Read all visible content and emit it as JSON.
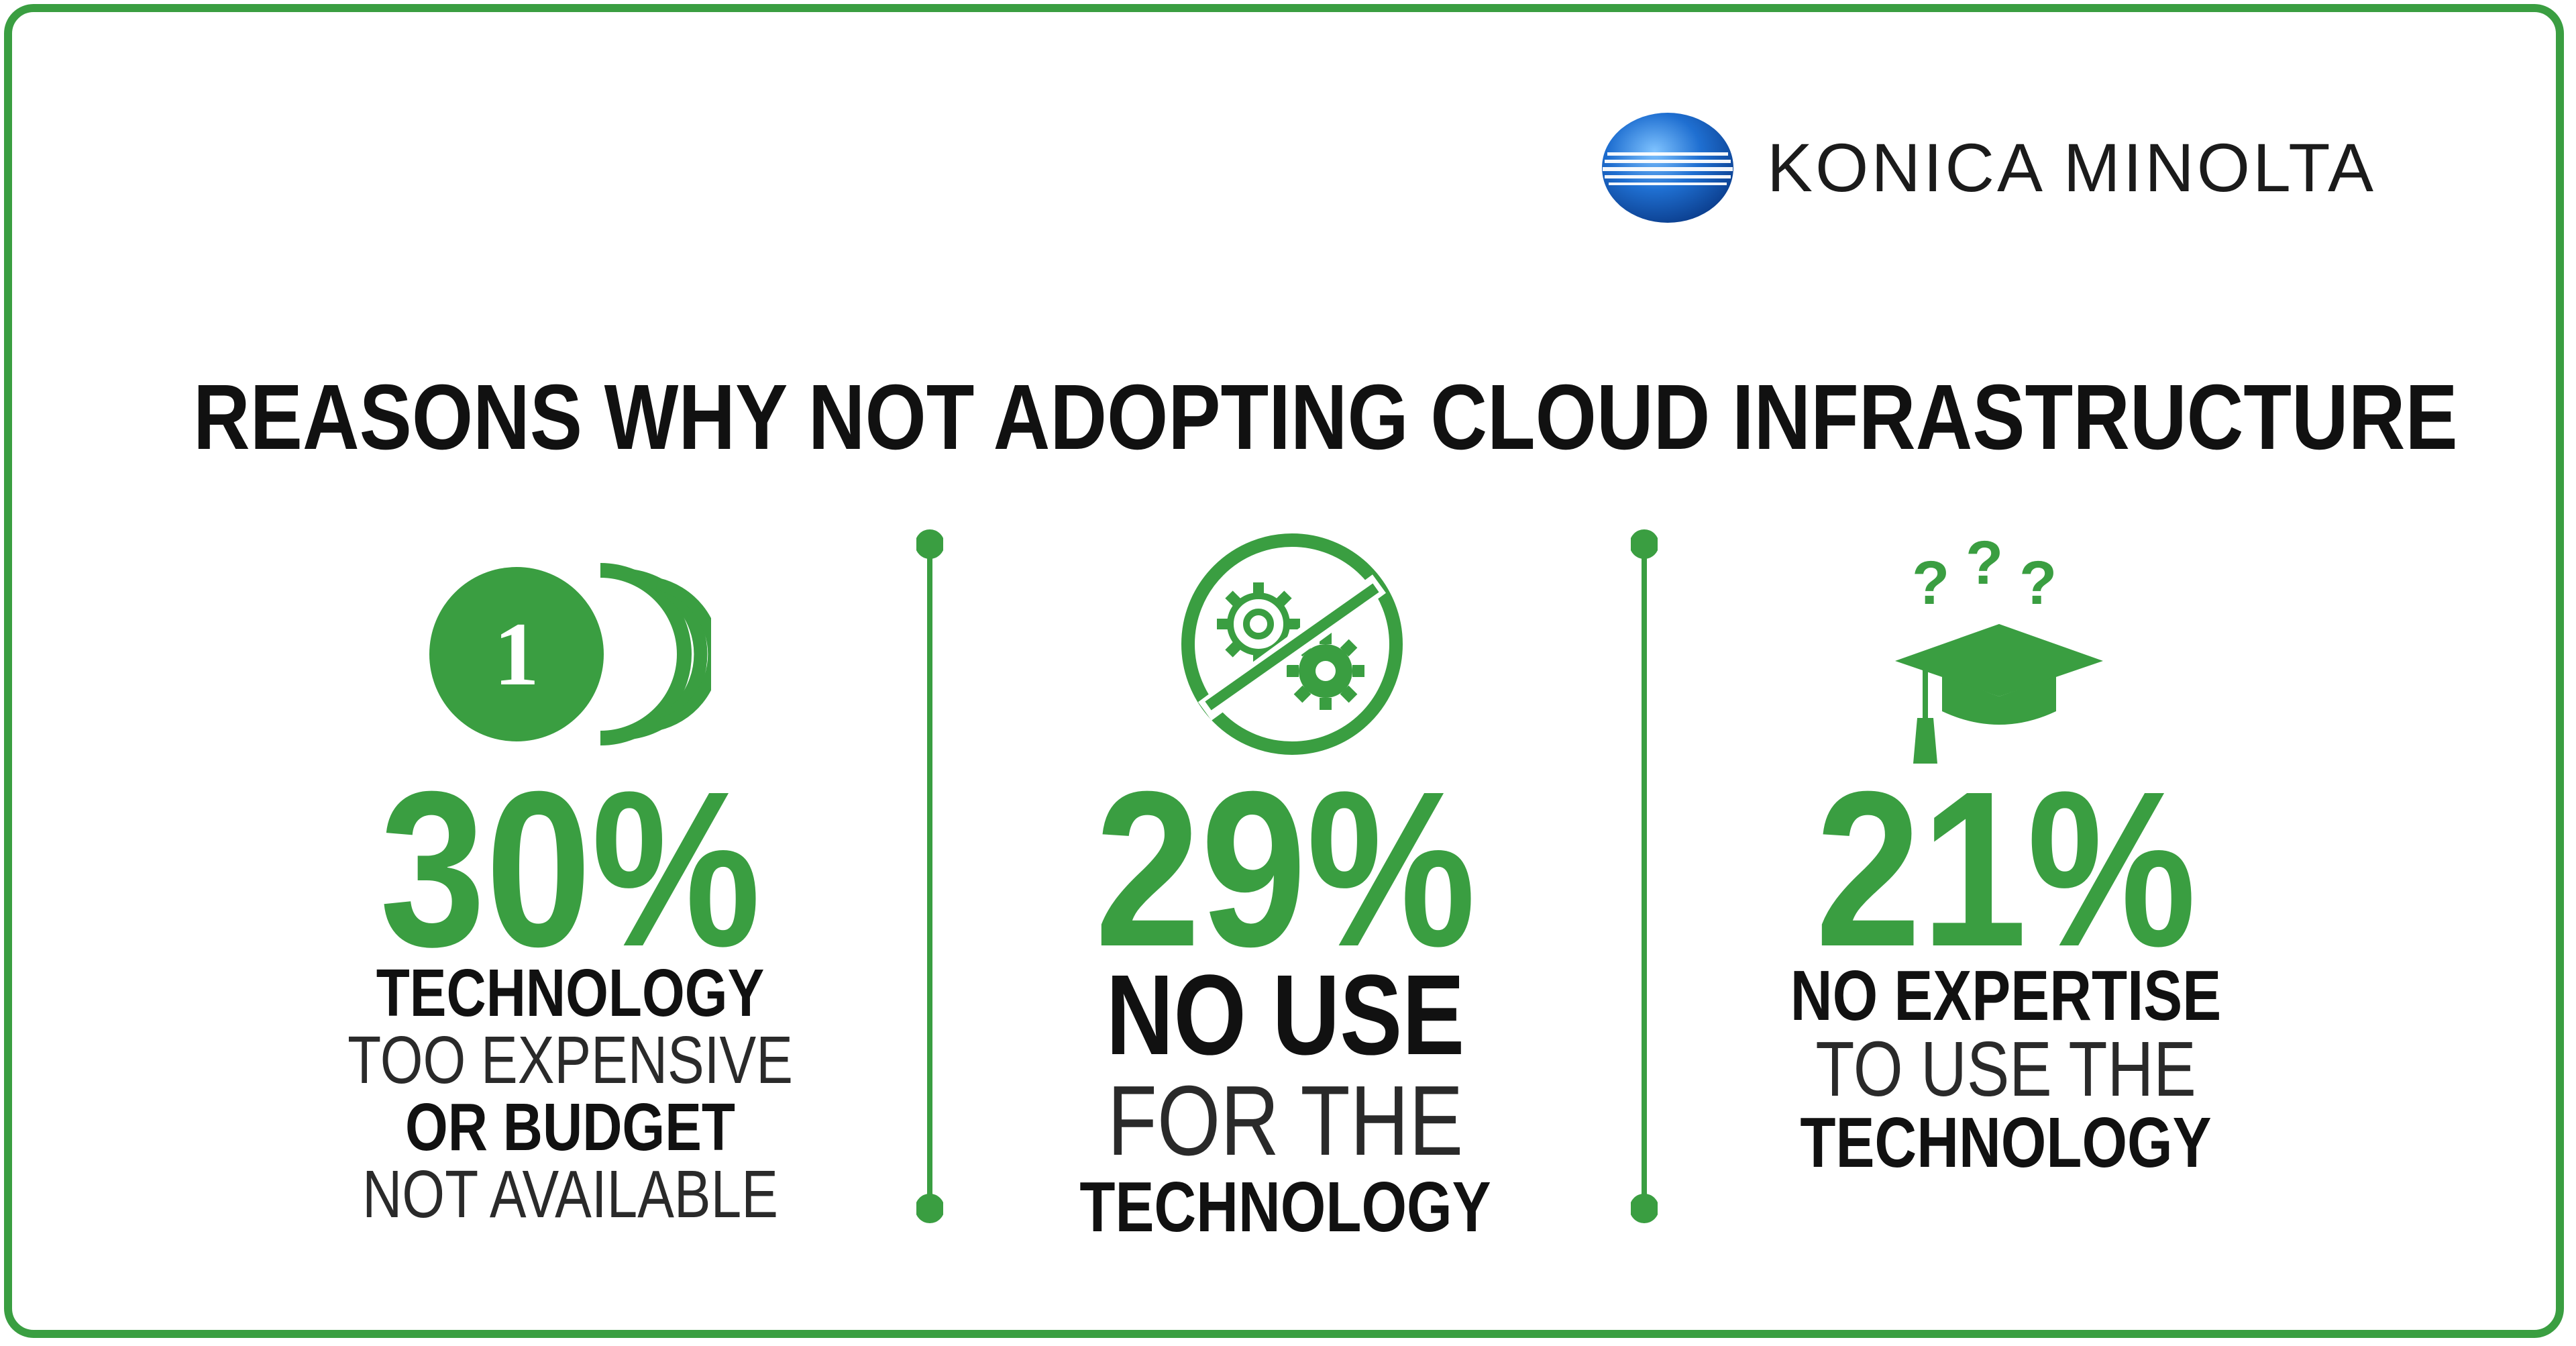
{
  "brand": {
    "name": "KONICA MINOLTA",
    "logo_icon": "globe-logo-icon",
    "color": "#1f6fd1"
  },
  "title": "REASONS WHY NOT ADOPTING CLOUD INFRASTRUCTURE",
  "accent_color": "#3a9e41",
  "stats": [
    {
      "percent": "30%",
      "value": 30,
      "icon": "coin-stack-icon",
      "coin_label": "1",
      "lines": [
        "TECHNOLOGY",
        "TOO EXPENSIVE",
        "OR BUDGET",
        "NOT AVAILABLE"
      ]
    },
    {
      "percent": "29%",
      "value": 29,
      "icon": "no-gears-icon",
      "lines": [
        "NO USE",
        "FOR THE",
        "TECHNOLOGY"
      ]
    },
    {
      "percent": "21%",
      "value": 21,
      "icon": "graduation-cap-questions-icon",
      "question_marks": [
        "?",
        "?",
        "?"
      ],
      "lines": [
        "NO EXPERTISE",
        "TO USE THE",
        "TECHNOLOGY"
      ]
    }
  ]
}
